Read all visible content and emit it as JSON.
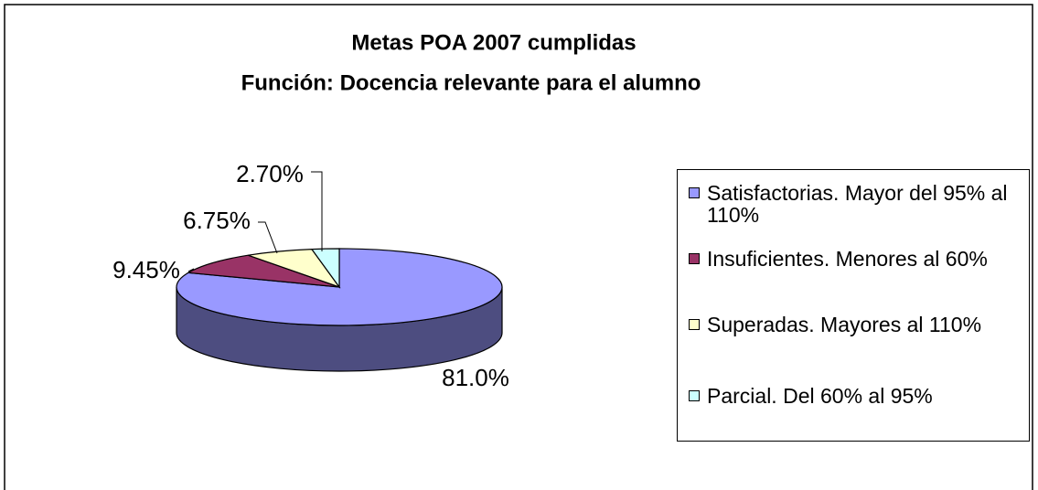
{
  "chart_data": {
    "type": "pie",
    "title": "Metas POA 2007 cumplidas",
    "subtitle": "Función: Docencia relevante para el alumno",
    "categories": [
      "Satisfactorias. Mayor del 95% al 110%",
      "Insuficientes. Menores al 60%",
      "Superadas. Mayores al 110%",
      "Parcial. Del 60% al 95%"
    ],
    "values": [
      81.0,
      9.45,
      6.75,
      2.7
    ],
    "value_labels": [
      "81.0%",
      "9.45%",
      "6.75%",
      "2.70%"
    ],
    "colors": [
      "#9999ff",
      "#993366",
      "#ffffcc",
      "#ccffff"
    ],
    "legend": "right"
  }
}
